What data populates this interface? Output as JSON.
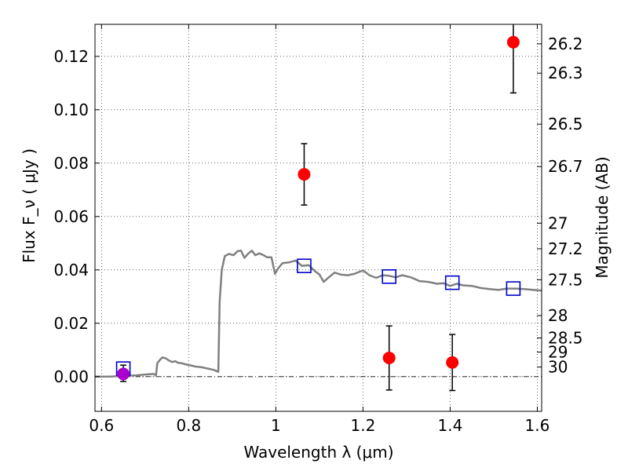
{
  "chart_data": {
    "type": "scatter",
    "xlabel": "Wavelength  λ (μm)",
    "ylabel": "Flux  F_ν  ( μJy )",
    "ylabel_right": "Magnitude (AB)",
    "xlim": [
      0.585,
      1.61
    ],
    "ylim": [
      -0.013,
      0.132
    ],
    "grid": true,
    "x_ticks": [
      {
        "value": 0.6,
        "label": "0.6"
      },
      {
        "value": 0.8,
        "label": "0.8"
      },
      {
        "value": 1.0,
        "label": "1"
      },
      {
        "value": 1.2,
        "label": "1.2"
      },
      {
        "value": 1.4,
        "label": "1.4"
      },
      {
        "value": 1.6,
        "label": "1.6"
      }
    ],
    "y_ticks": [
      {
        "value": 0.0,
        "label": "0.00"
      },
      {
        "value": 0.02,
        "label": "0.02"
      },
      {
        "value": 0.04,
        "label": "0.04"
      },
      {
        "value": 0.06,
        "label": "0.06"
      },
      {
        "value": 0.08,
        "label": "0.08"
      },
      {
        "value": 0.1,
        "label": "0.10"
      },
      {
        "value": 0.12,
        "label": "0.12"
      }
    ],
    "magnitude_ticks": [
      {
        "flux": 0.1247,
        "label": "26.2"
      },
      {
        "flux": 0.1137,
        "label": "26.3"
      },
      {
        "flux": 0.0946,
        "label": "26.5"
      },
      {
        "flux": 0.0787,
        "label": "26.7"
      },
      {
        "flux": 0.0575,
        "label": "27"
      },
      {
        "flux": 0.0479,
        "label": "27.2"
      },
      {
        "flux": 0.0363,
        "label": "27.5"
      },
      {
        "flux": 0.0229,
        "label": "28"
      },
      {
        "flux": 0.0145,
        "label": "28.5"
      },
      {
        "flux": 0.0092,
        "label": "29"
      },
      {
        "flux": 0.0036,
        "label": "30"
      }
    ],
    "series": [
      {
        "kind": "line",
        "color": "#808080",
        "points": [
          [
            0.585,
            0.0
          ],
          [
            0.6,
            0.0
          ],
          [
            0.62,
            0.0
          ],
          [
            0.64,
            0.0002
          ],
          [
            0.66,
            0.0003
          ],
          [
            0.68,
            0.0005
          ],
          [
            0.7,
            0.0008
          ],
          [
            0.72,
            0.001
          ],
          [
            0.725,
            0.0005
          ],
          [
            0.728,
            0.005
          ],
          [
            0.735,
            0.0065
          ],
          [
            0.74,
            0.0072
          ],
          [
            0.748,
            0.0068
          ],
          [
            0.755,
            0.006
          ],
          [
            0.762,
            0.0055
          ],
          [
            0.77,
            0.0058
          ],
          [
            0.775,
            0.0052
          ],
          [
            0.785,
            0.005
          ],
          [
            0.795,
            0.0045
          ],
          [
            0.805,
            0.0042
          ],
          [
            0.815,
            0.0038
          ],
          [
            0.83,
            0.0035
          ],
          [
            0.845,
            0.003
          ],
          [
            0.858,
            0.0025
          ],
          [
            0.868,
            0.0018
          ],
          [
            0.871,
            0.028
          ],
          [
            0.876,
            0.04
          ],
          [
            0.883,
            0.0452
          ],
          [
            0.893,
            0.046
          ],
          [
            0.903,
            0.0455
          ],
          [
            0.912,
            0.047
          ],
          [
            0.92,
            0.0472
          ],
          [
            0.928,
            0.0445
          ],
          [
            0.936,
            0.046
          ],
          [
            0.945,
            0.0472
          ],
          [
            0.953,
            0.0455
          ],
          [
            0.962,
            0.0462
          ],
          [
            0.972,
            0.0455
          ],
          [
            0.98,
            0.0447
          ],
          [
            0.99,
            0.0447
          ],
          [
            0.998,
            0.0385
          ],
          [
            1.005,
            0.0405
          ],
          [
            1.015,
            0.0425
          ],
          [
            1.03,
            0.0428
          ],
          [
            1.045,
            0.0435
          ],
          [
            1.06,
            0.0415
          ],
          [
            1.075,
            0.0418
          ],
          [
            1.09,
            0.0395
          ],
          [
            1.1,
            0.0383
          ],
          [
            1.11,
            0.0355
          ],
          [
            1.12,
            0.037
          ],
          [
            1.135,
            0.039
          ],
          [
            1.15,
            0.0382
          ],
          [
            1.165,
            0.038
          ],
          [
            1.18,
            0.0385
          ],
          [
            1.2,
            0.0398
          ],
          [
            1.215,
            0.038
          ],
          [
            1.23,
            0.037
          ],
          [
            1.245,
            0.038
          ],
          [
            1.26,
            0.0378
          ],
          [
            1.275,
            0.0372
          ],
          [
            1.29,
            0.038
          ],
          [
            1.31,
            0.0372
          ],
          [
            1.33,
            0.0358
          ],
          [
            1.35,
            0.0355
          ],
          [
            1.37,
            0.0348
          ],
          [
            1.385,
            0.035
          ],
          [
            1.4,
            0.034
          ],
          [
            1.415,
            0.0348
          ],
          [
            1.43,
            0.0342
          ],
          [
            1.45,
            0.034
          ],
          [
            1.47,
            0.0332
          ],
          [
            1.49,
            0.0328
          ],
          [
            1.51,
            0.0325
          ],
          [
            1.53,
            0.033
          ],
          [
            1.55,
            0.033
          ],
          [
            1.57,
            0.0328
          ],
          [
            1.59,
            0.0325
          ],
          [
            1.61,
            0.0322
          ]
        ]
      },
      {
        "kind": "model_points",
        "marker": "open-square",
        "color": "#0000cc",
        "points": [
          [
            0.65,
            0.003
          ],
          [
            1.065,
            0.0415
          ],
          [
            1.26,
            0.0375
          ],
          [
            1.405,
            0.0352
          ],
          [
            1.545,
            0.033
          ]
        ]
      },
      {
        "kind": "observed",
        "marker": "filled-circle",
        "color": "#ff0000",
        "points": [
          {
            "x": 1.065,
            "y": 0.0758,
            "yerr_low": 0.0115,
            "yerr_high": 0.0115
          },
          {
            "x": 1.26,
            "y": 0.007,
            "yerr_low": 0.012,
            "yerr_high": 0.012
          },
          {
            "x": 1.405,
            "y": 0.0053,
            "yerr_low": 0.0105,
            "yerr_high": 0.0105
          },
          {
            "x": 1.545,
            "y": 0.1253,
            "yerr_low": 0.019,
            "yerr_high": 0.008
          }
        ]
      },
      {
        "kind": "observed",
        "marker": "filled-circle",
        "color": "#aa00cc",
        "points": [
          {
            "x": 0.65,
            "y": 0.001,
            "yerr_low": 0.0028,
            "yerr_high": 0.0033
          }
        ]
      }
    ],
    "zero_line": {
      "y": 0.0,
      "style": "dash-dot"
    }
  }
}
